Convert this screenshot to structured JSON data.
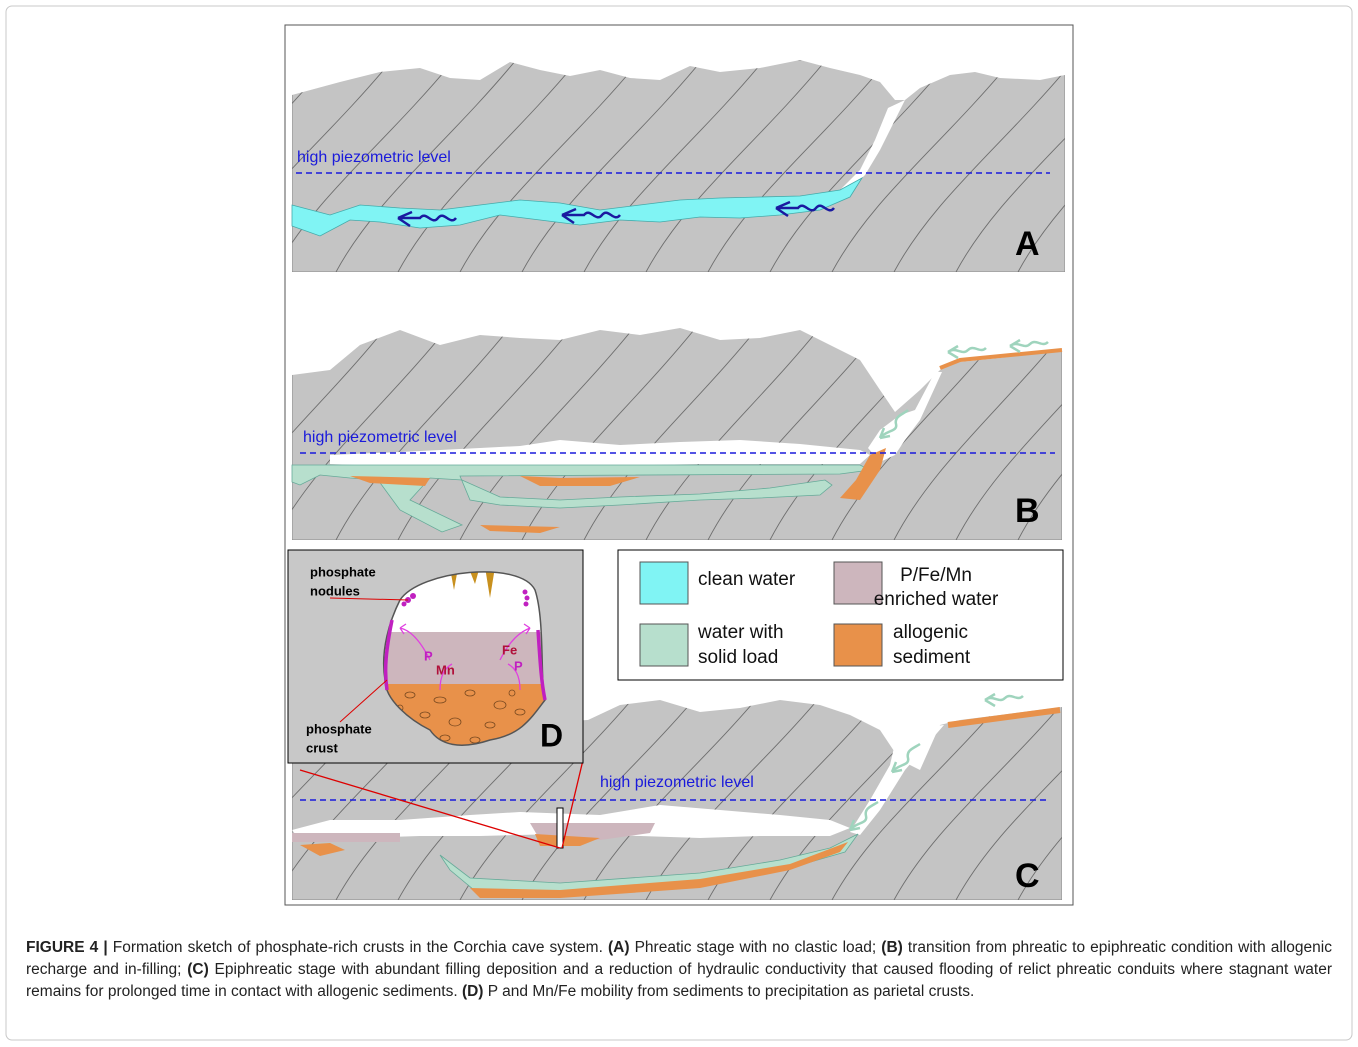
{
  "figure": {
    "panels": [
      {
        "label": "A",
        "water_level": "high piezometric level"
      },
      {
        "label": "B",
        "water_level": "high piezometric level"
      },
      {
        "label": "C",
        "water_level": "high piezometric level"
      }
    ],
    "legend": [
      {
        "lines": [
          "clean water"
        ]
      },
      {
        "lines": [
          "P/Fe/Mn",
          "enriched water"
        ]
      },
      {
        "lines": [
          "water with",
          "solid load"
        ]
      },
      {
        "lines": [
          "allogenic",
          "sediment"
        ]
      }
    ],
    "inset": {
      "label": "D",
      "nodules": [
        "phosphate",
        "nodules"
      ],
      "crust": [
        "phosphate",
        "crust"
      ],
      "elements": [
        "P",
        "Mn",
        "Fe",
        "P"
      ]
    }
  },
  "caption": {
    "label": "FIGURE 4 |",
    "parts": [
      "Formation sketch of phosphate-rich crusts in the Corchia cave system.",
      "(A)",
      "Phreatic stage with no clastic load;",
      "(B)",
      "transition from phreatic to epiphreatic condition with allogenic recharge and in-filling;",
      "(C)",
      "Epiphreatic stage with abundant filling deposition and a reduction of hydraulic conductivity that caused flooding of relict phreatic conduits where stagnant water remains for prolonged time in contact with allogenic sediments.",
      "(D)",
      "P and Mn/Fe mobility from sediments to precipitation as parietal crusts."
    ]
  }
}
